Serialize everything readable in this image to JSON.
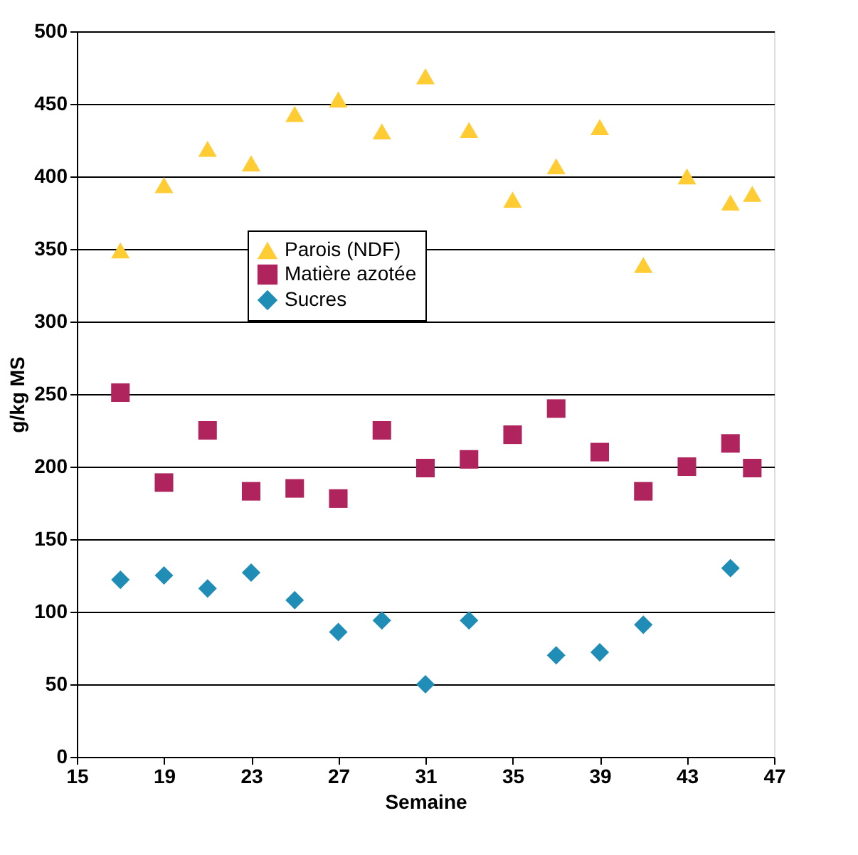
{
  "chart_data": {
    "type": "scatter",
    "xlabel": "Semaine",
    "ylabel": "g/kg MS",
    "xlim": [
      15,
      47
    ],
    "xticks": [
      15,
      19,
      23,
      27,
      31,
      35,
      39,
      43,
      47
    ],
    "ylim": [
      0,
      500
    ],
    "yticks": [
      0,
      50,
      100,
      150,
      200,
      250,
      300,
      350,
      400,
      450,
      500
    ],
    "grid": "y",
    "legend": "left",
    "series": [
      {
        "name": "Parois  (NDF)",
        "color": "#ffcc33",
        "marker": "triangle",
        "x": [
          17,
          19,
          21,
          23,
          25,
          27,
          29,
          31,
          33,
          35,
          37,
          39,
          41,
          43,
          45,
          46
        ],
        "values": [
          349,
          394,
          419,
          409,
          443,
          453,
          431,
          469,
          432,
          384,
          407,
          434,
          339,
          400,
          382,
          388
        ]
      },
      {
        "name": "Matière azotée",
        "color": "#b0245e",
        "marker": "square",
        "x": [
          17,
          19,
          21,
          23,
          25,
          27,
          29,
          31,
          33,
          35,
          37,
          39,
          41,
          43,
          45,
          46
        ],
        "values": [
          251,
          189,
          225,
          183,
          185,
          178,
          225,
          199,
          205,
          222,
          240,
          210,
          183,
          200,
          216,
          199
        ]
      },
      {
        "name": "Sucres",
        "color": "#1f8db5",
        "marker": "diamond",
        "x": [
          17,
          19,
          21,
          23,
          25,
          27,
          29,
          31,
          33,
          37,
          39,
          41,
          45
        ],
        "values": [
          122,
          125,
          116,
          127,
          108,
          86,
          94,
          50,
          94,
          70,
          72,
          91,
          130
        ]
      }
    ]
  }
}
